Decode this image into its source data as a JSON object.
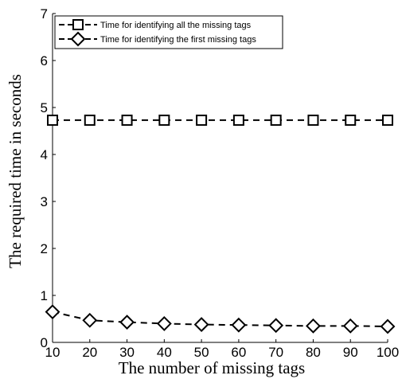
{
  "chart_data": {
    "type": "line",
    "title": "",
    "xlabel": "The number of missing tags",
    "ylabel": "The required time in seconds",
    "x": [
      10,
      20,
      30,
      40,
      50,
      60,
      70,
      80,
      90,
      100
    ],
    "xlim": [
      10,
      100
    ],
    "ylim": [
      0,
      7
    ],
    "xticks": [
      "10",
      "20",
      "30",
      "40",
      "50",
      "60",
      "70",
      "80",
      "90",
      "100"
    ],
    "yticks": [
      "0",
      "1",
      "2",
      "3",
      "4",
      "5",
      "6",
      "7"
    ],
    "grid": false,
    "legend_position": "top-left",
    "series": [
      {
        "name": "Time for identifying all the missing tags",
        "marker": "square",
        "line_style": "dashed",
        "color": "#000000",
        "values": [
          4.73,
          4.73,
          4.73,
          4.73,
          4.73,
          4.73,
          4.73,
          4.73,
          4.73,
          4.73
        ]
      },
      {
        "name": "Time for identifying the first missing tags",
        "marker": "diamond",
        "line_style": "dashed",
        "color": "#000000",
        "values": [
          0.65,
          0.47,
          0.43,
          0.4,
          0.38,
          0.37,
          0.36,
          0.35,
          0.35,
          0.34
        ]
      }
    ]
  }
}
